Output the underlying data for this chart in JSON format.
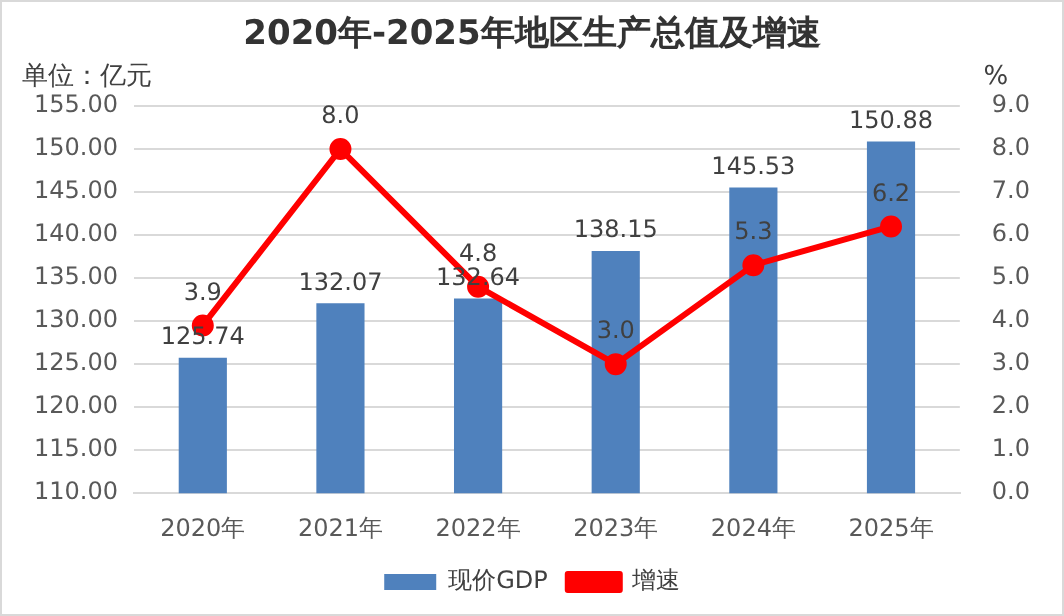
{
  "chart_data": {
    "type": "bar",
    "title": "2020年-2025年地区生产总值及增速",
    "ylabel": "单位：亿元",
    "y2label": "%",
    "categories": [
      "2020年",
      "2021年",
      "2022年",
      "2023年",
      "2024年",
      "2025年"
    ],
    "series": [
      {
        "name": "现价GDP",
        "color": "#4f81bd",
        "values": [
          125.74,
          132.07,
          132.64,
          138.15,
          145.53,
          150.88
        ],
        "value_labels": [
          "125.74",
          "132.07",
          "132.64",
          "138.15",
          "145.53",
          "150.88"
        ]
      },
      {
        "name": "增速",
        "type": "line",
        "axis": "y2",
        "color": "#ff0000",
        "marker": "circle",
        "values": [
          3.9,
          8.0,
          4.8,
          3.0,
          5.3,
          6.2
        ],
        "value_labels": [
          "3.9",
          "8.0",
          "4.8",
          "3.0",
          "5.3",
          "6.2"
        ]
      }
    ],
    "ylim": [
      110,
      155
    ],
    "yticks": [
      {
        "value": 110,
        "label": "110.00"
      },
      {
        "value": 115,
        "label": "115.00"
      },
      {
        "value": 120,
        "label": "120.00"
      },
      {
        "value": 125,
        "label": "125.00"
      },
      {
        "value": 130,
        "label": "130.00"
      },
      {
        "value": 135,
        "label": "135.00"
      },
      {
        "value": 140,
        "label": "140.00"
      },
      {
        "value": 145,
        "label": "145.00"
      },
      {
        "value": 150,
        "label": "150.00"
      },
      {
        "value": 155,
        "label": "155.00"
      }
    ],
    "y2lim": [
      0,
      9
    ],
    "y2ticks": [
      {
        "value": 0,
        "label": "0.0"
      },
      {
        "value": 1,
        "label": "1.0"
      },
      {
        "value": 2,
        "label": "2.0"
      },
      {
        "value": 3,
        "label": "3.0"
      },
      {
        "value": 4,
        "label": "4.0"
      },
      {
        "value": 5,
        "label": "5.0"
      },
      {
        "value": 6,
        "label": "6.0"
      },
      {
        "value": 7,
        "label": "7.0"
      },
      {
        "value": 8,
        "label": "8.0"
      },
      {
        "value": 9,
        "label": "9.0"
      }
    ],
    "grid": "y",
    "legend": "bottom"
  }
}
